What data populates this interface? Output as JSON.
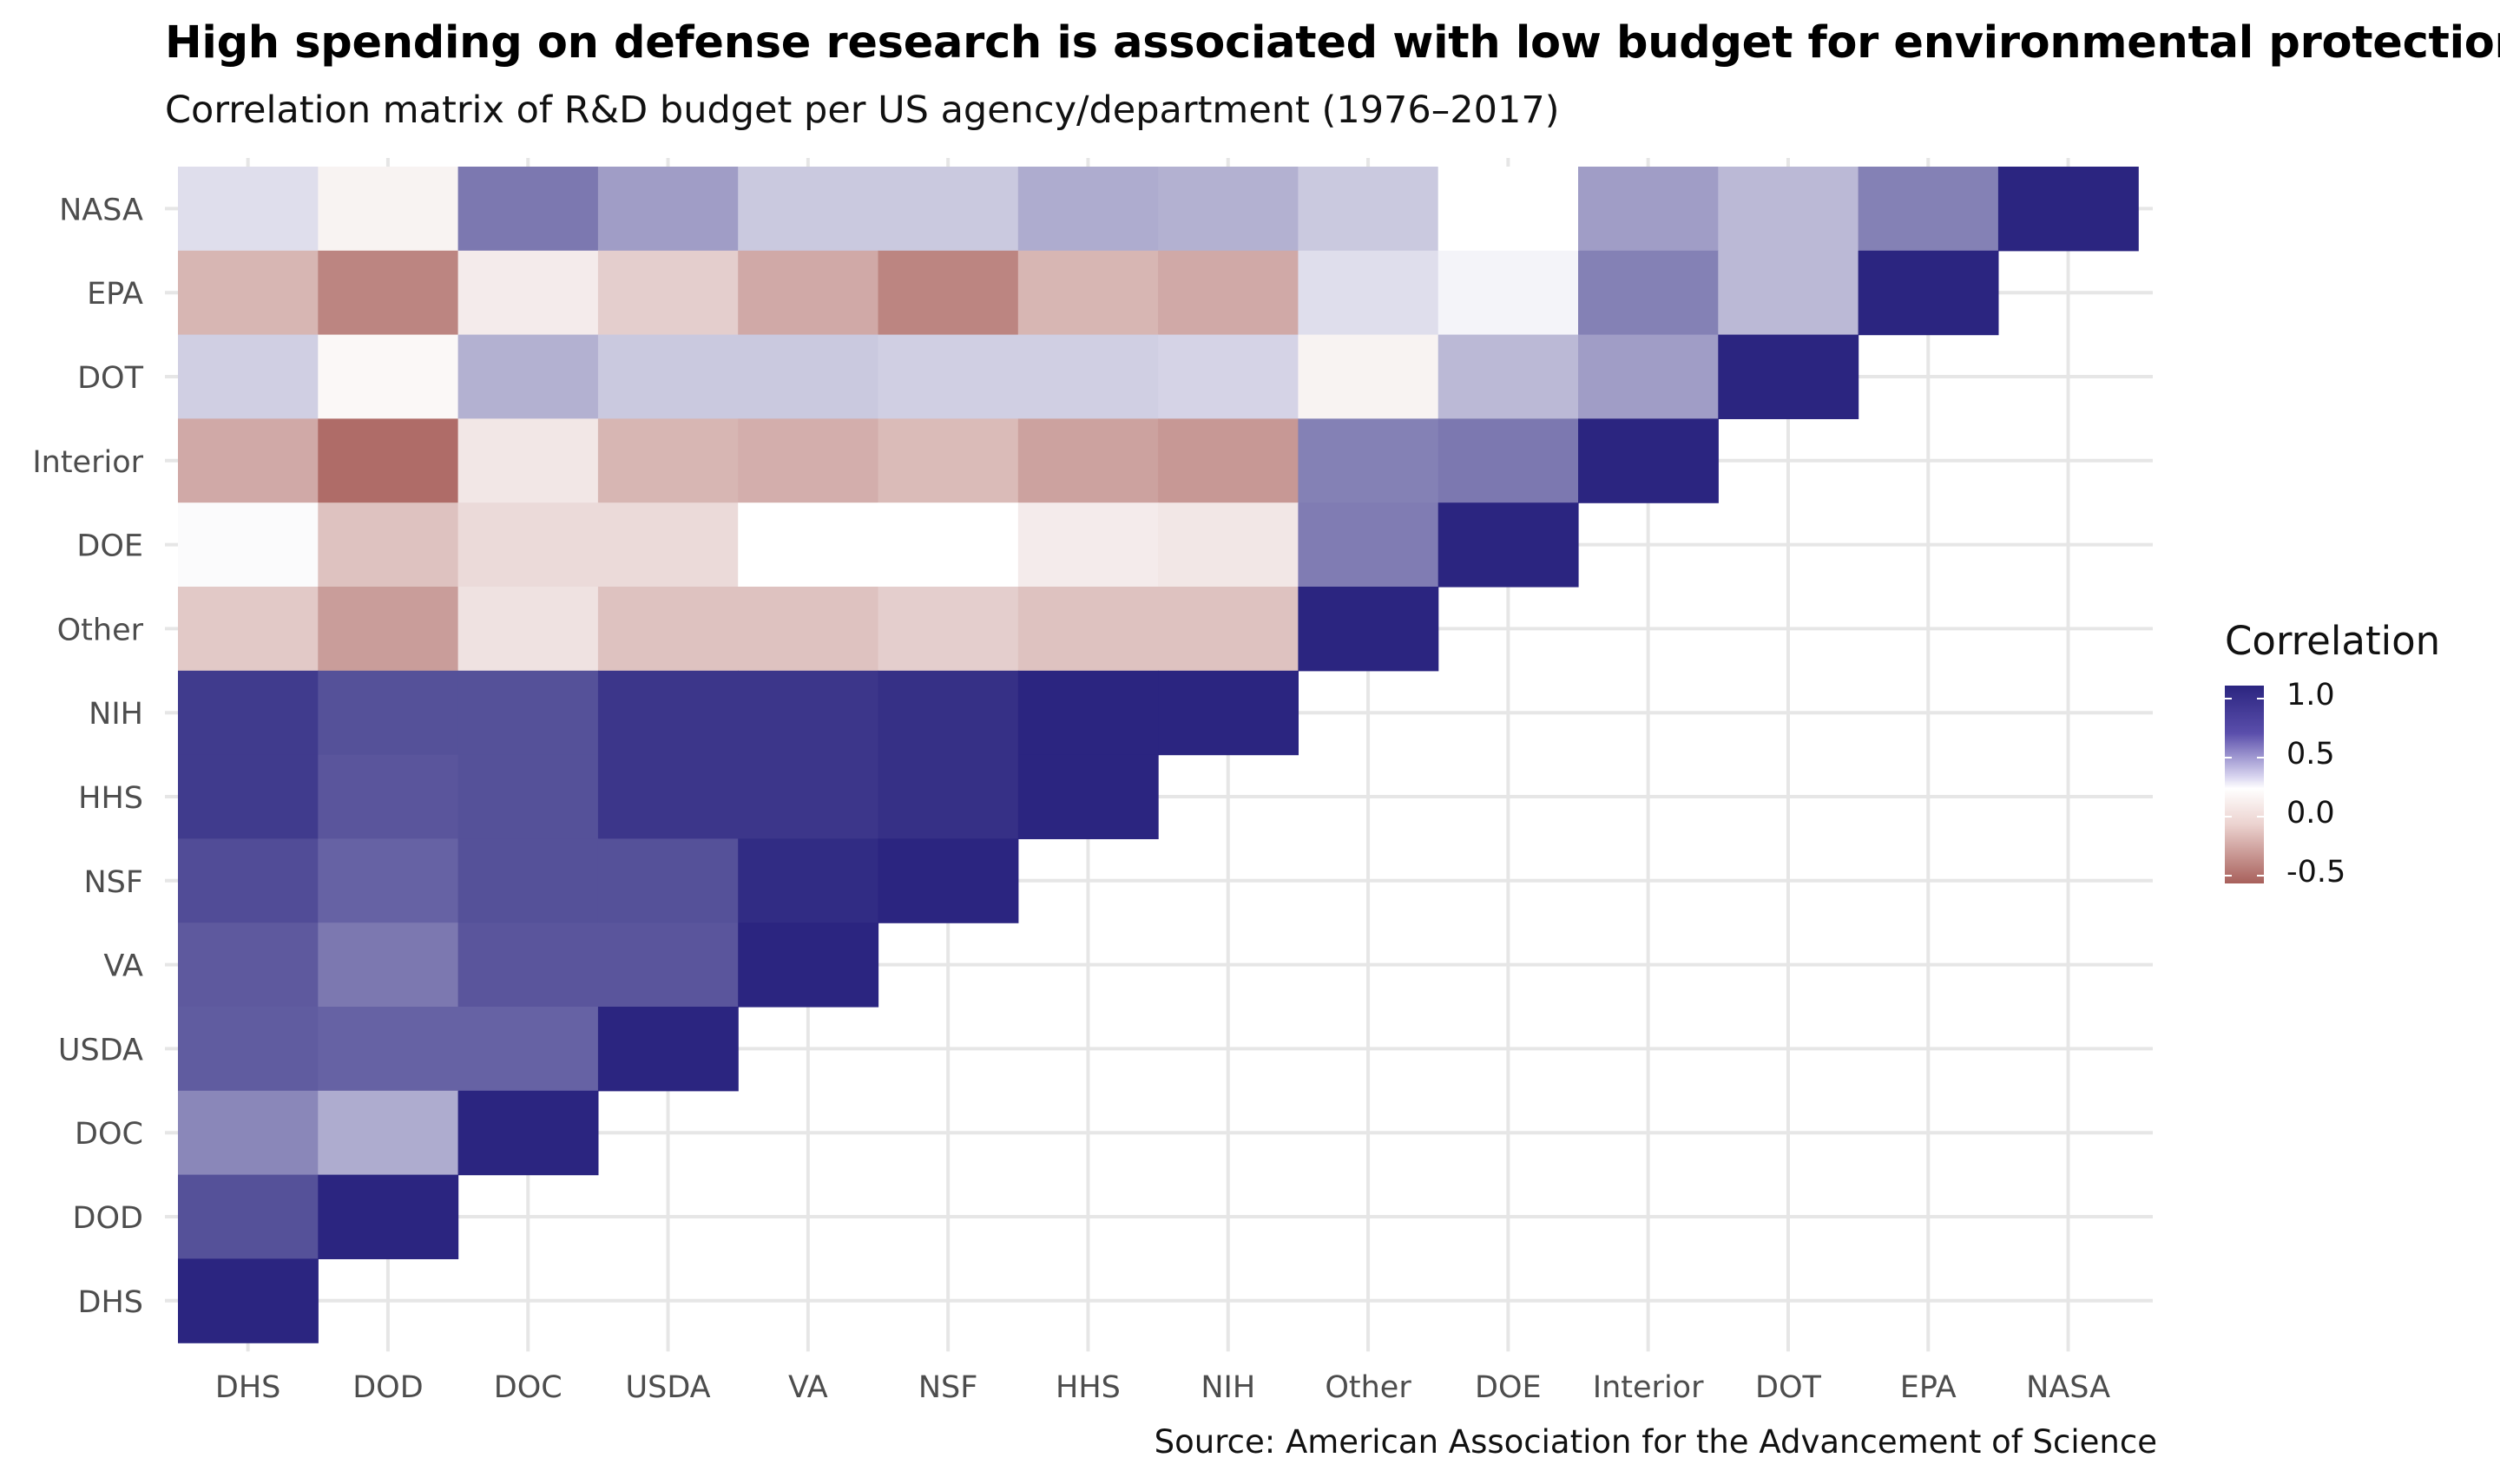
{
  "title": "High spending on defense research is associated with low budget for environmental protection",
  "subtitle": "Correlation matrix of R&D budget per US agency/department (1976–2017)",
  "caption": "Source: American Association for the Advancement of Science",
  "chart_data": {
    "type": "heatmap",
    "title": "High spending on defense research is associated with low budget for environmental protection",
    "subtitle": "Correlation matrix of R&D budget per US agency/department (1976–2017)",
    "x_categories": [
      "DHS",
      "DOD",
      "DOC",
      "USDA",
      "VA",
      "NSF",
      "HHS",
      "NIH",
      "Other",
      "DOE",
      "Interior",
      "DOT",
      "EPA",
      "NASA"
    ],
    "y_categories": [
      "NASA",
      "EPA",
      "DOT",
      "Interior",
      "DOE",
      "Other",
      "NIH",
      "HHS",
      "NSF",
      "VA",
      "USDA",
      "DOC",
      "DOD",
      "DHS"
    ],
    "values": [
      [
        0.15,
        -0.05,
        0.62,
        0.45,
        0.25,
        0.25,
        0.38,
        0.36,
        0.25,
        0.0,
        0.45,
        0.32,
        0.58,
        1.0
      ],
      [
        -0.3,
        -0.5,
        -0.08,
        -0.2,
        -0.35,
        -0.5,
        -0.3,
        -0.35,
        0.15,
        0.05,
        0.58,
        0.32,
        1.0,
        null
      ],
      [
        0.22,
        -0.03,
        0.36,
        0.25,
        0.25,
        0.22,
        0.22,
        0.2,
        -0.05,
        0.32,
        0.45,
        1.0,
        null,
        null
      ],
      [
        -0.35,
        -0.6,
        -0.1,
        -0.3,
        -0.33,
        -0.28,
        -0.38,
        -0.42,
        0.58,
        0.62,
        1.0,
        null,
        null,
        null
      ],
      [
        0.02,
        -0.25,
        -0.15,
        -0.15,
        0.0,
        0.0,
        -0.08,
        -0.1,
        0.6,
        1.0,
        null,
        null,
        null,
        null
      ],
      [
        -0.22,
        -0.4,
        -0.12,
        -0.25,
        -0.25,
        -0.2,
        -0.25,
        -0.25,
        1.0,
        null,
        null,
        null,
        null,
        null
      ],
      [
        0.9,
        0.8,
        0.8,
        0.92,
        0.92,
        0.95,
        1.0,
        1.0,
        null,
        null,
        null,
        null,
        null,
        null
      ],
      [
        0.9,
        0.78,
        0.8,
        0.92,
        0.92,
        0.95,
        1.0,
        null,
        null,
        null,
        null,
        null,
        null,
        null
      ],
      [
        0.82,
        0.72,
        0.8,
        0.8,
        0.97,
        1.0,
        null,
        null,
        null,
        null,
        null,
        null,
        null,
        null
      ],
      [
        0.76,
        0.62,
        0.78,
        0.78,
        1.0,
        null,
        null,
        null,
        null,
        null,
        null,
        null,
        null,
        null
      ],
      [
        0.75,
        0.72,
        0.72,
        1.0,
        null,
        null,
        null,
        null,
        null,
        null,
        null,
        null,
        null,
        null
      ],
      [
        0.55,
        0.38,
        1.0,
        null,
        null,
        null,
        null,
        null,
        null,
        null,
        null,
        null,
        null,
        null
      ],
      [
        0.8,
        1.0,
        null,
        null,
        null,
        null,
        null,
        null,
        null,
        null,
        null,
        null,
        null,
        null
      ],
      [
        1.0,
        null,
        null,
        null,
        null,
        null,
        null,
        null,
        null,
        null,
        null,
        null,
        null,
        null
      ]
    ],
    "legend": {
      "title": "Correlation",
      "ticks": [
        "1.0",
        "0.5",
        "0.0",
        "-0.5"
      ],
      "placement": "right"
    },
    "color_scale": {
      "low": "#a8605b",
      "mid": "#ffffff",
      "high": "#2b2580",
      "limits": [
        -0.65,
        1.0
      ]
    },
    "grid": true
  }
}
